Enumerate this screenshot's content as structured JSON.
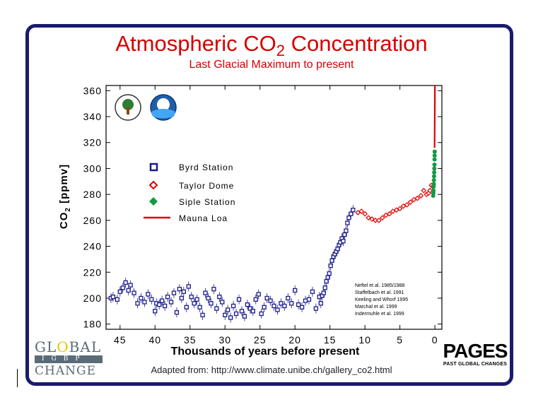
{
  "title_main": "Atmospheric CO",
  "title_sub": "2",
  "title_rest": " Concentration",
  "subtitle": "Last Glacial Maximum to present",
  "credit": "Adapted from: http://www.climate.unibe.ch/gallery_co2.html",
  "logo_left": {
    "row1a": "GL",
    "row1o": "O",
    "row1b": "BAL",
    "row2": "IGBP",
    "row3": "CHANGE"
  },
  "logo_right": {
    "big": "PAGES",
    "small": "PAST GLOBAL CHANGES"
  },
  "colors": {
    "frame": "#1a1a6e",
    "title": "#d40000",
    "byrd": "#1a1a8c",
    "taylor": "#e00000",
    "siple": "#119944",
    "mauna": "#e00000"
  },
  "chart_data": {
    "type": "scatter",
    "title": "Atmospheric CO2 Concentration",
    "subtitle": "Last Glacial Maximum to present",
    "xlabel": "Thousands of years before present",
    "ylabel": "CO2 [ppmv]",
    "ylabel_main": "CO",
    "ylabel_sub": "2",
    "ylabel_rest": " [ppmv]",
    "xlim": [
      47,
      -1
    ],
    "ylim": [
      176,
      364
    ],
    "xticks": [
      45,
      40,
      35,
      30,
      25,
      20,
      15,
      10,
      5,
      0
    ],
    "yticks": [
      180,
      200,
      220,
      240,
      260,
      280,
      300,
      320,
      340,
      360
    ],
    "grid": false,
    "legend_position": "upper-left",
    "series": [
      {
        "name": "Byrd Station",
        "marker": "square",
        "x": [
          46.3,
          46,
          45.4,
          45,
          44.6,
          44.2,
          43.8,
          43.5,
          43,
          42.5,
          42,
          41.5,
          41,
          40.5,
          40,
          39.8,
          39.4,
          39,
          38.6,
          38.2,
          37.7,
          37.3,
          36.9,
          36.5,
          36.2,
          35.9,
          35.5,
          35.2,
          34.8,
          34.4,
          34,
          33.6,
          33.2,
          32.8,
          32.4,
          32,
          31.6,
          31.2,
          30.8,
          30.4,
          30,
          29.6,
          29.2,
          28.8,
          28.4,
          28,
          27.6,
          27.2,
          26.8,
          26.4,
          26,
          25.6,
          25.2,
          24.8,
          24.4,
          24,
          23.5,
          23,
          22.5,
          22,
          21.5,
          21,
          20.5,
          20,
          19.5,
          19,
          18.5,
          18,
          17.5,
          17,
          16.5,
          16.3,
          16.1,
          15.9,
          15.7,
          15.5,
          15.3,
          15.1,
          14.9,
          14.7,
          14.5,
          14.3,
          14.1,
          13.9,
          13.7,
          13.5,
          13.3,
          13.1,
          12.9,
          12.7,
          12.5,
          12.3,
          12,
          11.7
        ],
        "y": [
          200,
          201,
          199,
          205,
          208,
          212,
          206,
          210,
          204,
          196,
          200,
          197,
          203,
          199,
          190,
          196,
          195,
          198,
          194,
          201,
          197,
          204,
          189,
          207,
          200,
          205,
          193,
          209,
          201,
          196,
          199,
          193,
          187,
          204,
          200,
          196,
          207,
          192,
          201,
          197,
          187,
          191,
          185,
          194,
          188,
          199,
          190,
          186,
          195,
          192,
          190,
          199,
          203,
          188,
          193,
          200,
          198,
          194,
          191,
          196,
          194,
          200,
          196,
          206,
          195,
          193,
          198,
          199,
          205,
          192,
          201,
          196,
          202,
          204,
          208,
          213,
          216,
          219,
          225,
          229,
          232,
          234,
          236,
          238,
          241,
          243,
          246,
          244,
          249,
          252,
          258,
          262,
          265,
          268
        ]
      },
      {
        "name": "Taylor Dome",
        "marker": "diamond",
        "x": [
          11,
          10.5,
          10,
          9.5,
          9,
          8.5,
          8,
          7.5,
          7,
          6.5,
          6,
          5.5,
          5,
          4.5,
          4,
          3.5,
          3,
          2.5,
          2,
          1.6,
          1.2,
          0.9,
          0.7,
          0.5,
          0.3
        ],
        "y": [
          266,
          267,
          265,
          262,
          261,
          260,
          260,
          262,
          264,
          265,
          267,
          268,
          269,
          271,
          272,
          274,
          276,
          277,
          279,
          283,
          280,
          281,
          283,
          287,
          286
        ]
      },
      {
        "name": "Siple Station",
        "marker": "circle",
        "x": [
          0.25,
          0.22,
          0.2,
          0.18,
          0.16,
          0.14,
          0.12,
          0.1,
          0.08,
          0.06,
          0.05,
          0.04,
          0.03
        ],
        "y": [
          279,
          281,
          283,
          286,
          288,
          291,
          294,
          297,
          300,
          303,
          307,
          310,
          313
        ]
      },
      {
        "name": "Mauna Loa",
        "marker": "line",
        "x": [
          0.047,
          0.04,
          0.03,
          0.02,
          0.01,
          0.0
        ],
        "y": [
          316,
          322,
          330,
          340,
          352,
          364
        ]
      }
    ],
    "annotations": [
      "Neftel et al. 1985/1988",
      "Staffelbach et al. 1991",
      "Keeling and Whorf 1995",
      "Marchal et al. 1999",
      "Indermuhle et al. 1999"
    ]
  }
}
